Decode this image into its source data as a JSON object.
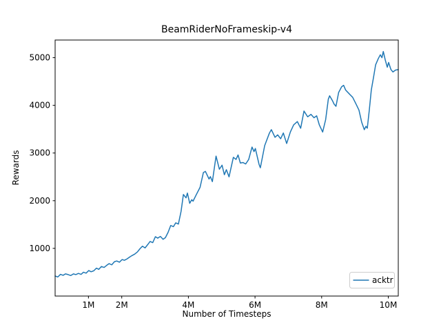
{
  "chart_data": {
    "type": "line",
    "title": "BeamRiderNoFrameskip-v4",
    "xlabel": "Number of Timesteps",
    "ylabel": "Rewards",
    "xlim": [
      0,
      10.3
    ],
    "ylim": [
      0,
      5370
    ],
    "grid": false,
    "xticks": {
      "values": [
        1,
        2,
        4,
        6,
        8,
        10
      ],
      "labels": [
        "1M",
        "2M",
        "4M",
        "6M",
        "8M",
        "10M"
      ]
    },
    "yticks": {
      "values": [
        1000,
        2000,
        3000,
        4000,
        5000
      ],
      "labels": [
        "1000",
        "2000",
        "3000",
        "4000",
        "5000"
      ]
    },
    "legend": {
      "position": "lower right",
      "entries": [
        "acktr"
      ]
    },
    "series": [
      {
        "name": "acktr",
        "color": "#1f77b4",
        "x": [
          0.0,
          0.08,
          0.16,
          0.24,
          0.31,
          0.39,
          0.47,
          0.55,
          0.62,
          0.7,
          0.78,
          0.85,
          0.93,
          1.01,
          1.08,
          1.16,
          1.24,
          1.31,
          1.39,
          1.47,
          1.54,
          1.62,
          1.7,
          1.78,
          1.85,
          1.93,
          2.01,
          2.08,
          2.16,
          2.24,
          2.31,
          2.39,
          2.47,
          2.55,
          2.62,
          2.7,
          2.78,
          2.85,
          2.93,
          3.01,
          3.08,
          3.16,
          3.24,
          3.31,
          3.39,
          3.47,
          3.55,
          3.62,
          3.7,
          3.78,
          3.85,
          3.93,
          3.97,
          4.04,
          4.1,
          4.14,
          4.24,
          4.35,
          4.45,
          4.51,
          4.62,
          4.66,
          4.72,
          4.83,
          4.93,
          5.01,
          5.08,
          5.14,
          5.22,
          5.35,
          5.43,
          5.49,
          5.56,
          5.64,
          5.72,
          5.81,
          5.91,
          5.97,
          6.01,
          6.12,
          6.16,
          6.29,
          6.43,
          6.49,
          6.6,
          6.68,
          6.77,
          6.85,
          6.95,
          7.06,
          7.16,
          7.27,
          7.37,
          7.47,
          7.58,
          7.68,
          7.77,
          7.85,
          7.93,
          8.03,
          8.12,
          8.2,
          8.24,
          8.33,
          8.37,
          8.43,
          8.51,
          8.6,
          8.66,
          8.72,
          8.83,
          8.93,
          9.03,
          9.12,
          9.2,
          9.28,
          9.33,
          9.37,
          9.43,
          9.49,
          9.56,
          9.62,
          9.7,
          9.76,
          9.81,
          9.85,
          9.91,
          9.97,
          10.01,
          10.08,
          10.14,
          10.22,
          10.3
        ],
        "y": [
          420,
          400,
          455,
          435,
          465,
          450,
          430,
          465,
          450,
          475,
          455,
          500,
          480,
          535,
          510,
          530,
          585,
          560,
          620,
          600,
          640,
          680,
          655,
          720,
          735,
          710,
          765,
          750,
          780,
          820,
          850,
          880,
          925,
          995,
          1045,
          1010,
          1080,
          1145,
          1120,
          1245,
          1215,
          1250,
          1190,
          1225,
          1335,
          1480,
          1455,
          1535,
          1510,
          1775,
          2130,
          2060,
          2160,
          1945,
          2020,
          1990,
          2130,
          2280,
          2590,
          2615,
          2455,
          2505,
          2400,
          2935,
          2660,
          2745,
          2545,
          2650,
          2500,
          2910,
          2865,
          2960,
          2790,
          2800,
          2770,
          2865,
          3125,
          3030,
          3095,
          2765,
          2690,
          3155,
          3415,
          3490,
          3330,
          3380,
          3300,
          3420,
          3200,
          3440,
          3590,
          3660,
          3520,
          3880,
          3760,
          3810,
          3740,
          3780,
          3590,
          3440,
          3700,
          4130,
          4200,
          4090,
          4030,
          3980,
          4270,
          4390,
          4420,
          4320,
          4240,
          4170,
          4030,
          3900,
          3650,
          3490,
          3560,
          3520,
          3900,
          4320,
          4600,
          4850,
          4980,
          5060,
          5000,
          5130,
          4950,
          4800,
          4900,
          4750,
          4700,
          4740,
          4750
        ]
      }
    ]
  }
}
